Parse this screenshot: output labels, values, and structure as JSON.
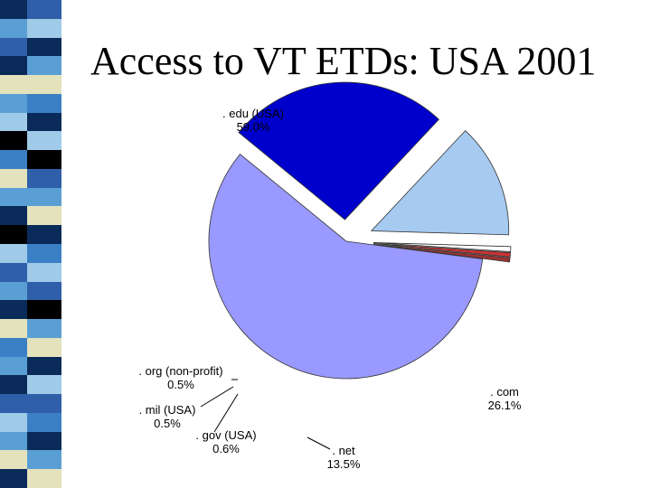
{
  "slide": {
    "title": "Access to VT ETDs: USA 2001"
  },
  "colors": {
    "stripe_palette": [
      "#0a2a5a",
      "#5a9fd4",
      "#2e5fa8",
      "#e4e2bc",
      "#9fcbe8",
      "#000000",
      "#3b7fc4",
      "#ffffff"
    ],
    "edu": "#9999ff",
    "com": "#0000cc",
    "net": "#a6caf0",
    "gov": "#ffffff",
    "mil": "#cc3333",
    "org": "#993333"
  },
  "chart_data": {
    "type": "pie",
    "title": "",
    "start_angle_deg": 7.4,
    "slices": [
      {
        "label": ". edu (USA)",
        "value_text": "59.0%",
        "value": 59.0,
        "color": "#9999ff",
        "exploded": false
      },
      {
        "label": ". com",
        "value_text": "26.1%",
        "value": 26.1,
        "color": "#0000cc",
        "exploded": true
      },
      {
        "label": ". net",
        "value_text": "13.5%",
        "value": 13.5,
        "color": "#a6caf0",
        "exploded": true
      },
      {
        "label": ". gov (USA)",
        "value_text": "0.6%",
        "value": 0.6,
        "color": "#ffffff",
        "exploded": true
      },
      {
        "label": ". mil (USA)",
        "value_text": "0.5%",
        "value": 0.5,
        "color": "#cc3333",
        "exploded": true
      },
      {
        "label": ". org (non-profit)",
        "value_text": "0.5%",
        "value": 0.5,
        "color": "#993333",
        "exploded": true
      }
    ]
  }
}
